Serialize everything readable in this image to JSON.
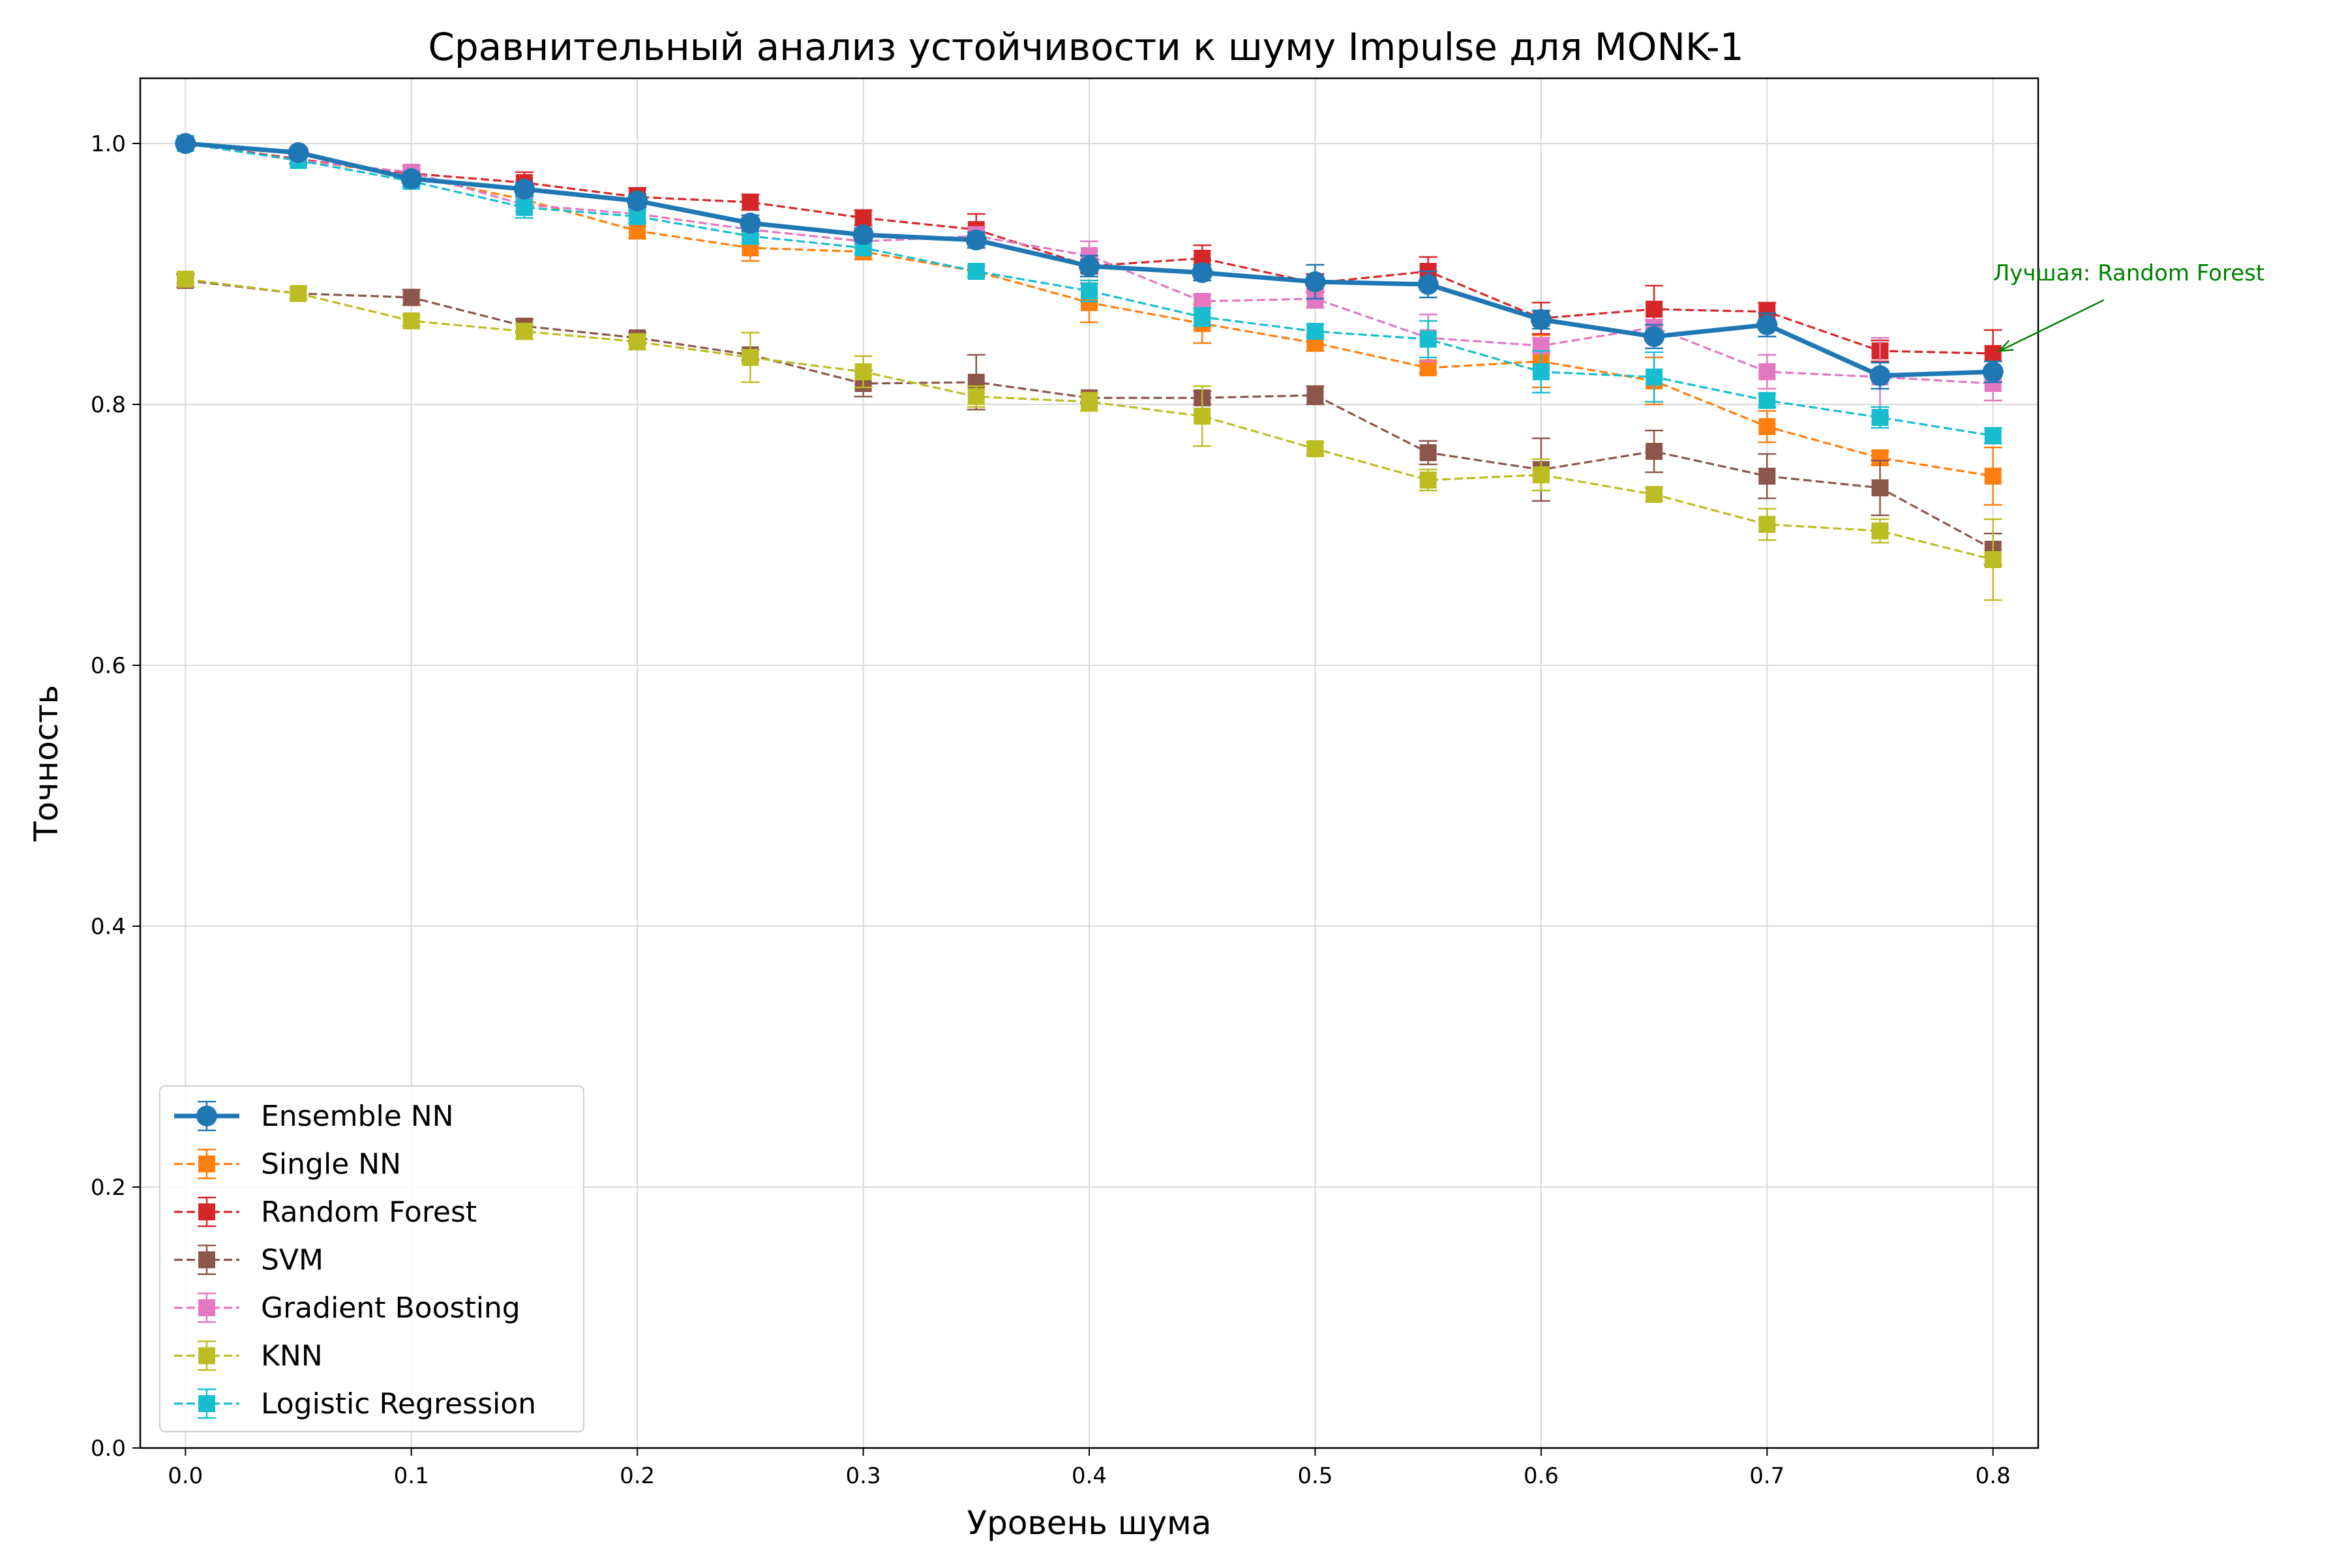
{
  "chart_data": {
    "type": "line",
    "title": "Сравнительный анализ устойчивости к шуму Impulse для MONK-1",
    "xlabel": "Уровень шума",
    "ylabel": "Точность",
    "xlim": [
      -0.02,
      0.82
    ],
    "ylim": [
      0.0,
      1.05
    ],
    "xticks": [
      "0.0",
      "0.1",
      "0.2",
      "0.3",
      "0.4",
      "0.5",
      "0.6",
      "0.7",
      "0.8"
    ],
    "yticks": [
      "0.0",
      "0.2",
      "0.4",
      "0.6",
      "0.8",
      "1.0"
    ],
    "grid": true,
    "legend_position": "lower-left",
    "x": [
      0.0,
      0.05,
      0.1,
      0.15,
      0.2,
      0.25,
      0.3,
      0.35,
      0.4,
      0.45,
      0.5,
      0.55,
      0.6,
      0.65,
      0.7,
      0.75,
      0.8
    ],
    "series": [
      {
        "name": "Ensemble NN",
        "color": "#1f77b4",
        "marker": "circle",
        "style": "solid",
        "values": [
          1.0,
          0.993,
          0.973,
          0.965,
          0.956,
          0.939,
          0.93,
          0.926,
          0.906,
          0.901,
          0.894,
          0.892,
          0.865,
          0.852,
          0.861,
          0.822,
          0.825
        ],
        "errors": [
          0.002,
          0.003,
          0.004,
          0.005,
          0.005,
          0.006,
          0.005,
          0.006,
          0.008,
          0.006,
          0.013,
          0.01,
          0.007,
          0.009,
          0.009,
          0.01,
          0.008
        ]
      },
      {
        "name": "Single NN",
        "color": "#ff7f0e",
        "marker": "square",
        "style": "dashed",
        "values": [
          1.0,
          0.988,
          0.975,
          0.957,
          0.933,
          0.92,
          0.917,
          0.902,
          0.878,
          0.862,
          0.847,
          0.828,
          0.833,
          0.818,
          0.783,
          0.759,
          0.745
        ],
        "errors": [
          0.002,
          0.003,
          0.004,
          0.005,
          0.006,
          0.01,
          0.006,
          0.004,
          0.015,
          0.015,
          0.006,
          0.004,
          0.02,
          0.018,
          0.012,
          0.005,
          0.022
        ]
      },
      {
        "name": "Random Forest",
        "color": "#d62728",
        "marker": "square",
        "style": "dashed",
        "values": [
          1.0,
          0.988,
          0.977,
          0.97,
          0.959,
          0.955,
          0.943,
          0.934,
          0.906,
          0.912,
          0.893,
          0.902,
          0.866,
          0.873,
          0.871,
          0.841,
          0.839
        ],
        "errors": [
          0.002,
          0.003,
          0.006,
          0.008,
          0.007,
          0.006,
          0.006,
          0.012,
          0.005,
          0.01,
          0.007,
          0.011,
          0.012,
          0.018,
          0.007,
          0.008,
          0.018
        ]
      },
      {
        "name": "SVM",
        "color": "#8c564b",
        "marker": "square",
        "style": "dashed",
        "values": [
          0.895,
          0.885,
          0.882,
          0.86,
          0.851,
          0.838,
          0.816,
          0.817,
          0.805,
          0.805,
          0.807,
          0.763,
          0.75,
          0.764,
          0.745,
          0.736,
          0.689
        ],
        "errors": [
          0.005,
          0.004,
          0.006,
          0.005,
          0.004,
          0.004,
          0.01,
          0.021,
          0.004,
          0.005,
          0.007,
          0.009,
          0.024,
          0.016,
          0.017,
          0.021,
          0.012
        ]
      },
      {
        "name": "Gradient Boosting",
        "color": "#e377c2",
        "marker": "square",
        "style": "dashed",
        "values": [
          1.0,
          0.987,
          0.978,
          0.953,
          0.946,
          0.934,
          0.925,
          0.929,
          0.914,
          0.879,
          0.881,
          0.851,
          0.845,
          0.859,
          0.825,
          0.821,
          0.816
        ],
        "errors": [
          0.002,
          0.003,
          0.005,
          0.005,
          0.005,
          0.004,
          0.005,
          0.007,
          0.011,
          0.005,
          0.007,
          0.018,
          0.006,
          0.006,
          0.013,
          0.03,
          0.013
        ]
      },
      {
        "name": "KNN",
        "color": "#bcbd22",
        "marker": "square",
        "style": "dashed",
        "values": [
          0.896,
          0.885,
          0.864,
          0.856,
          0.848,
          0.836,
          0.825,
          0.806,
          0.802,
          0.791,
          0.766,
          0.742,
          0.746,
          0.731,
          0.708,
          0.703,
          0.681
        ],
        "errors": [
          0.003,
          0.004,
          0.004,
          0.006,
          0.006,
          0.019,
          0.012,
          0.008,
          0.007,
          0.023,
          0.005,
          0.008,
          0.012,
          0.005,
          0.012,
          0.009,
          0.031
        ]
      },
      {
        "name": "Logistic Regression",
        "color": "#17becf",
        "marker": "square",
        "style": "dashed",
        "values": [
          1.0,
          0.987,
          0.971,
          0.951,
          0.944,
          0.929,
          0.92,
          0.902,
          0.887,
          0.867,
          0.856,
          0.85,
          0.825,
          0.821,
          0.803,
          0.79,
          0.776
        ],
        "errors": [
          0.002,
          0.003,
          0.004,
          0.008,
          0.005,
          0.006,
          0.005,
          0.004,
          0.008,
          0.007,
          0.005,
          0.014,
          0.016,
          0.019,
          0.005,
          0.008,
          0.006
        ]
      }
    ],
    "annotation": {
      "text": "Лучшая: Random Forest",
      "color": "#008000",
      "point": {
        "x": 0.8,
        "y": 0.839
      },
      "text_anchor_data": {
        "x": 0.8,
        "y": 0.89
      }
    }
  }
}
